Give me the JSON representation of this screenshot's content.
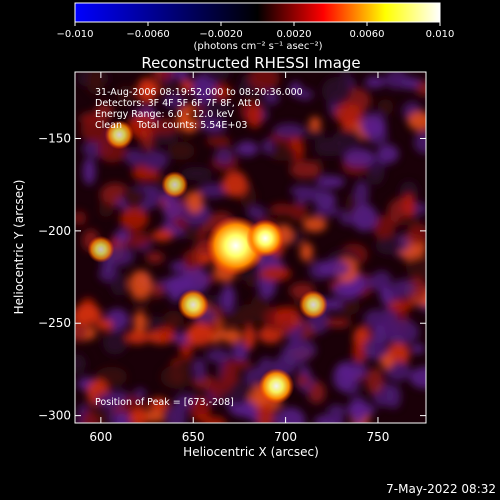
{
  "chart_data": {
    "type": "heatmap",
    "title": "Reconstructed RHESSI Image",
    "xlabel": "Heliocentric X (arcsec)",
    "ylabel": "Heliocentric Y (arcsec)",
    "xlim": [
      586,
      776
    ],
    "ylim": [
      -304,
      -114
    ],
    "x_ticks": [
      600,
      650,
      700,
      750
    ],
    "x_tick_labels": [
      "600",
      "650",
      "700",
      "750"
    ],
    "y_ticks": [
      -150,
      -200,
      -250,
      -300
    ],
    "y_tick_labels": [
      "−150",
      "−200",
      "−250",
      "−300"
    ],
    "colorbar": {
      "min": -0.01,
      "max": 0.01,
      "ticks": [
        -0.01,
        -0.006,
        -0.002,
        0.002,
        0.006,
        0.01
      ],
      "tick_labels": [
        "−0.010",
        "−0.0060",
        "−0.0020",
        "0.0020",
        "0.0060",
        "0.010"
      ],
      "unit_label": "(photons cm⁻² s⁻¹ asec⁻²)",
      "colors": [
        "#0000ff",
        "#000000",
        "#ff0000",
        "#ffff00",
        "#ffffff"
      ]
    },
    "annotations": {
      "time_range": "31-Aug-2006 08:19:52.000 to 08:20:36.000",
      "detectors": "Detectors: 3F 4F 5F 6F 7F 8F, Att 0",
      "energy": "Energy Range: 6.0 - 12.0 keV",
      "clean": "Clean     Total counts: 5.54E+03",
      "peak": "Position of Peak = [673,-208]"
    },
    "sources": [
      {
        "x": 673,
        "y": -208,
        "value": 0.01
      },
      {
        "x": 689,
        "y": -204,
        "value": 0.005
      },
      {
        "x": 650,
        "y": -240,
        "value": 0.0035
      },
      {
        "x": 695,
        "y": -284,
        "value": 0.0045
      },
      {
        "x": 610,
        "y": -148,
        "value": 0.003
      },
      {
        "x": 640,
        "y": -175,
        "value": 0.0025
      },
      {
        "x": 715,
        "y": -240,
        "value": 0.003
      },
      {
        "x": 600,
        "y": -210,
        "value": 0.0025
      }
    ],
    "grid": false
  },
  "timestamp": "7-May-2022 08:32"
}
